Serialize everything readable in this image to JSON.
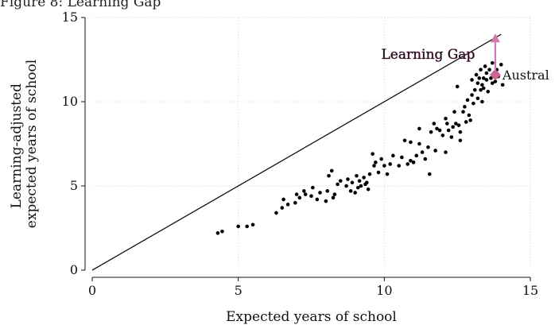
{
  "figure_title": "Figure 8: Learning Gap",
  "chart_data": {
    "type": "scatter",
    "xlabel": "Expected years of school",
    "ylabel_lines": [
      "Learning-adjusted",
      "expected years of school"
    ],
    "xlim": [
      0,
      15
    ],
    "ylim": [
      0,
      15
    ],
    "xticks": [
      0,
      5,
      10,
      15
    ],
    "yticks": [
      0,
      5,
      10,
      15
    ],
    "grid": true,
    "reference_line": {
      "from": [
        0,
        0
      ],
      "to": [
        14,
        14
      ]
    },
    "annotation": {
      "label": "Learning Gap",
      "x": 13.8,
      "y_from": 11.6,
      "y_to": 14,
      "at": [
        11.5,
        12.55
      ],
      "color": "#d07ab0"
    },
    "highlight": {
      "label": "Austral",
      "x": 13.8,
      "y": 11.6,
      "color": "#cc6699"
    },
    "points": {
      "x": [
        4.3,
        4.45,
        5.0,
        5.3,
        5.5,
        6.3,
        6.5,
        6.55,
        6.7,
        6.95,
        7.0,
        7.1,
        7.25,
        7.3,
        7.5,
        7.55,
        7.7,
        7.8,
        8.0,
        8.05,
        8.1,
        8.2,
        8.25,
        8.3,
        8.4,
        8.5,
        8.7,
        8.75,
        8.85,
        8.9,
        9.0,
        9.05,
        9.1,
        9.15,
        9.2,
        9.3,
        9.35,
        9.4,
        9.45,
        9.5,
        9.6,
        9.65,
        9.7,
        9.8,
        9.9,
        10.0,
        10.1,
        10.2,
        10.3,
        10.5,
        10.6,
        10.7,
        10.8,
        10.9,
        11.0,
        11.1,
        11.2,
        11.3,
        11.4,
        11.5,
        11.55,
        11.6,
        11.7,
        11.75,
        11.8,
        11.9,
        12.0,
        12.1,
        12.15,
        12.2,
        12.3,
        12.35,
        12.4,
        12.45,
        12.5,
        12.55,
        12.6,
        12.7,
        12.75,
        12.8,
        12.85,
        12.9,
        12.95,
        13.0,
        13.0,
        13.05,
        13.1,
        13.15,
        13.2,
        13.2,
        13.25,
        13.3,
        13.3,
        13.35,
        13.4,
        13.4,
        13.45,
        13.5,
        13.5,
        13.55,
        13.6,
        13.65,
        13.7,
        13.7,
        13.75,
        13.8,
        13.85,
        13.9,
        14.0,
        14.05,
        12.6,
        12.1,
        11.2,
        10.9,
        13.35
      ],
      "y": [
        2.2,
        2.3,
        2.6,
        2.6,
        2.7,
        3.4,
        3.7,
        4.2,
        3.9,
        4.0,
        4.5,
        4.3,
        4.7,
        4.5,
        4.4,
        4.9,
        4.2,
        4.6,
        4.1,
        4.7,
        5.6,
        5.9,
        4.3,
        4.5,
        5.1,
        5.3,
        5.0,
        5.4,
        4.7,
        5.2,
        4.6,
        5.6,
        4.9,
        5.3,
        5.0,
        5.5,
        5.1,
        5.2,
        4.8,
        5.7,
        6.9,
        6.2,
        6.4,
        5.8,
        6.6,
        6.2,
        5.7,
        6.3,
        6.8,
        6.2,
        6.7,
        7.7,
        6.3,
        6.5,
        6.4,
        6.8,
        7.5,
        7.0,
        6.6,
        7.3,
        5.7,
        8.2,
        8.7,
        7.1,
        8.4,
        8.3,
        8.0,
        9.0,
        8.7,
        8.3,
        7.9,
        8.5,
        9.4,
        8.7,
        10.9,
        8.6,
        8.2,
        9.4,
        9.7,
        8.8,
        10.1,
        9.2,
        8.9,
        10.4,
        11.3,
        9.9,
        10.7,
        11.6,
        11.1,
        10.2,
        11.4,
        10.7,
        11.9,
        11.0,
        11.4,
        10.8,
        12.1,
        11.7,
        11.3,
        10.6,
        11.9,
        11.4,
        11.1,
        12.3,
        11.7,
        11.2,
        11.9,
        11.5,
        12.2,
        11.0,
        7.7,
        7.0,
        8.4,
        7.6,
        10.0
      ]
    }
  }
}
